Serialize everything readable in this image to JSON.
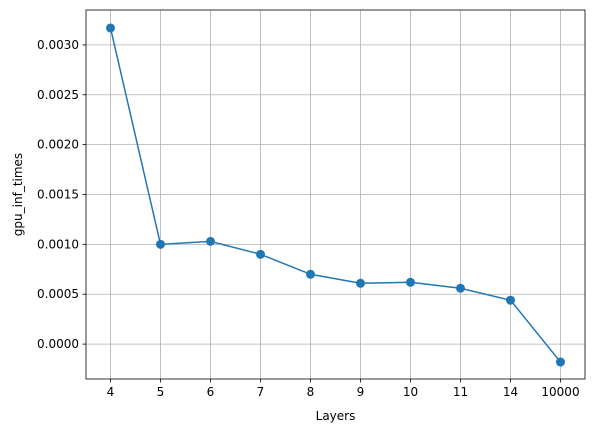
{
  "chart_data": {
    "type": "line",
    "title": "",
    "xlabel": "Layers",
    "ylabel": "gpu_inf_times",
    "categories": [
      "4",
      "5",
      "6",
      "7",
      "8",
      "9",
      "10",
      "11",
      "14",
      "10000"
    ],
    "series": [
      {
        "values": [
          0.00317,
          0.001,
          0.00103,
          0.0009,
          0.0007,
          0.00061,
          0.00062,
          0.00056,
          0.00044,
          -0.00018
        ],
        "color": "#1f77b4",
        "marker": "circle"
      }
    ],
    "yticks": [
      0.0,
      0.0005,
      0.001,
      0.0015,
      0.002,
      0.0025,
      0.003
    ],
    "ytick_labels": [
      "0.0000",
      "0.0005",
      "0.0010",
      "0.0015",
      "0.0020",
      "0.0025",
      "0.0030"
    ],
    "ylim": [
      -0.00035,
      0.00335
    ],
    "grid": true,
    "legend": "none"
  }
}
